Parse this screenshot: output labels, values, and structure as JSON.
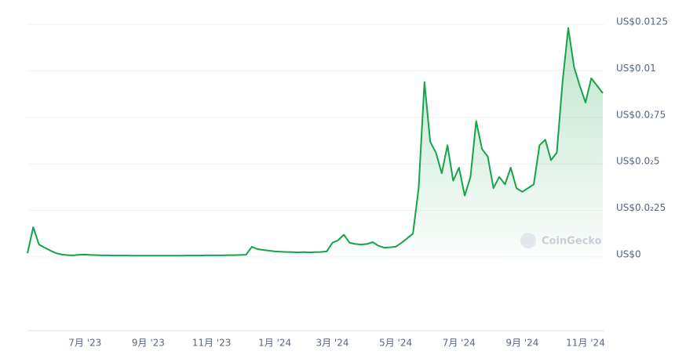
{
  "chart_data": {
    "type": "line",
    "watermark": "CoinGecko",
    "color": "#16a34a",
    "grid": true,
    "ylim": [
      0,
      0.0125
    ],
    "yticks": [
      {
        "value": 0,
        "label": "US$0"
      },
      {
        "value": 0.0025,
        "label": "US$0.0₂25"
      },
      {
        "value": 0.005,
        "label": "US$0.0₂5"
      },
      {
        "value": 0.0075,
        "label": "US$0.0₂75"
      },
      {
        "value": 0.01,
        "label": "US$0.01"
      },
      {
        "value": 0.0125,
        "label": "US$0.0125"
      }
    ],
    "categories": [
      null,
      null,
      null,
      null,
      null,
      null,
      null,
      null,
      null,
      null,
      "7月 '23",
      null,
      null,
      null,
      null,
      null,
      null,
      null,
      null,
      null,
      null,
      "9月 '23",
      null,
      null,
      null,
      null,
      null,
      null,
      null,
      null,
      null,
      null,
      "11月 '23",
      null,
      null,
      null,
      null,
      null,
      null,
      null,
      null,
      null,
      null,
      "1月 '24",
      null,
      null,
      null,
      null,
      null,
      null,
      null,
      null,
      null,
      "3月 '24",
      null,
      null,
      null,
      null,
      null,
      null,
      null,
      null,
      null,
      null,
      "5月 '24",
      null,
      null,
      null,
      null,
      null,
      null,
      null,
      null,
      null,
      null,
      "7月 '24",
      null,
      null,
      null,
      null,
      null,
      null,
      null,
      null,
      null,
      null,
      "9月 '24",
      null,
      null,
      null,
      null,
      null,
      null,
      null,
      null,
      null,
      null,
      "11月 '24",
      null,
      null,
      null
    ],
    "values": [
      0.0002,
      0.0016,
      0.00067,
      0.0005,
      0.00034,
      0.0002,
      0.00013,
      0.0001,
      9e-05,
      0.00012,
      0.00013,
      0.00011,
      0.0001,
      9e-05,
      9e-05,
      8e-05,
      8e-05,
      8e-05,
      7e-05,
      7e-05,
      7e-05,
      7e-05,
      7e-05,
      7e-05,
      7e-05,
      7e-05,
      7e-05,
      7e-05,
      8e-05,
      8e-05,
      8e-05,
      9e-05,
      9e-05,
      9e-05,
      9e-05,
      0.0001,
      0.0001,
      0.00011,
      0.00012,
      0.00055,
      0.00042,
      0.00038,
      0.00034,
      0.0003,
      0.00028,
      0.00027,
      0.00026,
      0.00025,
      0.00026,
      0.00025,
      0.00026,
      0.00027,
      0.0003,
      0.00076,
      0.0009,
      0.0012,
      0.00076,
      0.0007,
      0.00067,
      0.0007,
      0.0008,
      0.0006,
      0.0005,
      0.00052,
      0.00055,
      0.00076,
      0.001,
      0.00126,
      0.0037,
      0.0094,
      0.0062,
      0.0056,
      0.0045,
      0.006,
      0.0041,
      0.0048,
      0.0033,
      0.0043,
      0.0073,
      0.0058,
      0.0054,
      0.0037,
      0.0043,
      0.0039,
      0.0048,
      0.0037,
      0.0035,
      0.0037,
      0.0039,
      0.006,
      0.0063,
      0.0052,
      0.0056,
      0.0094,
      0.0123,
      0.0102,
      0.0092,
      0.0083,
      0.0096,
      0.0092,
      0.0088
    ]
  }
}
